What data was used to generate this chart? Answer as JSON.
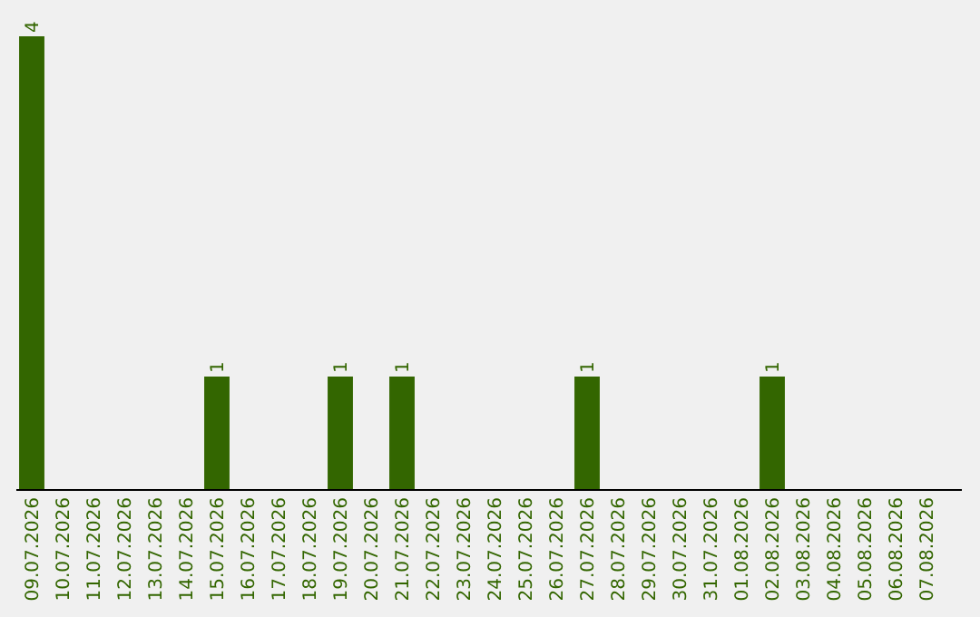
{
  "chart_data": {
    "type": "bar",
    "categories": [
      "09.07.2026",
      "10.07.2026",
      "11.07.2026",
      "12.07.2026",
      "13.07.2026",
      "14.07.2026",
      "15.07.2026",
      "16.07.2026",
      "17.07.2026",
      "18.07.2026",
      "19.07.2026",
      "20.07.2026",
      "21.07.2026",
      "22.07.2026",
      "23.07.2026",
      "24.07.2026",
      "25.07.2026",
      "26.07.2026",
      "27.07.2026",
      "28.07.2026",
      "29.07.2026",
      "30.07.2026",
      "31.07.2026",
      "01.08.2026",
      "02.08.2026",
      "03.08.2026",
      "04.08.2026",
      "05.08.2026",
      "06.08.2026",
      "07.08.2026"
    ],
    "values": [
      4,
      0,
      0,
      0,
      0,
      0,
      1,
      0,
      0,
      0,
      1,
      0,
      1,
      0,
      0,
      0,
      0,
      0,
      1,
      0,
      0,
      0,
      0,
      0,
      1,
      0,
      0,
      0,
      0,
      0
    ],
    "value_labels": [
      "4",
      null,
      null,
      null,
      null,
      null,
      "1",
      null,
      null,
      null,
      "1",
      null,
      "1",
      null,
      null,
      null,
      null,
      null,
      "1",
      null,
      null,
      null,
      null,
      null,
      "1",
      null,
      null,
      null,
      null,
      null
    ],
    "color": "#336600",
    "tick_labels": "x"
  }
}
